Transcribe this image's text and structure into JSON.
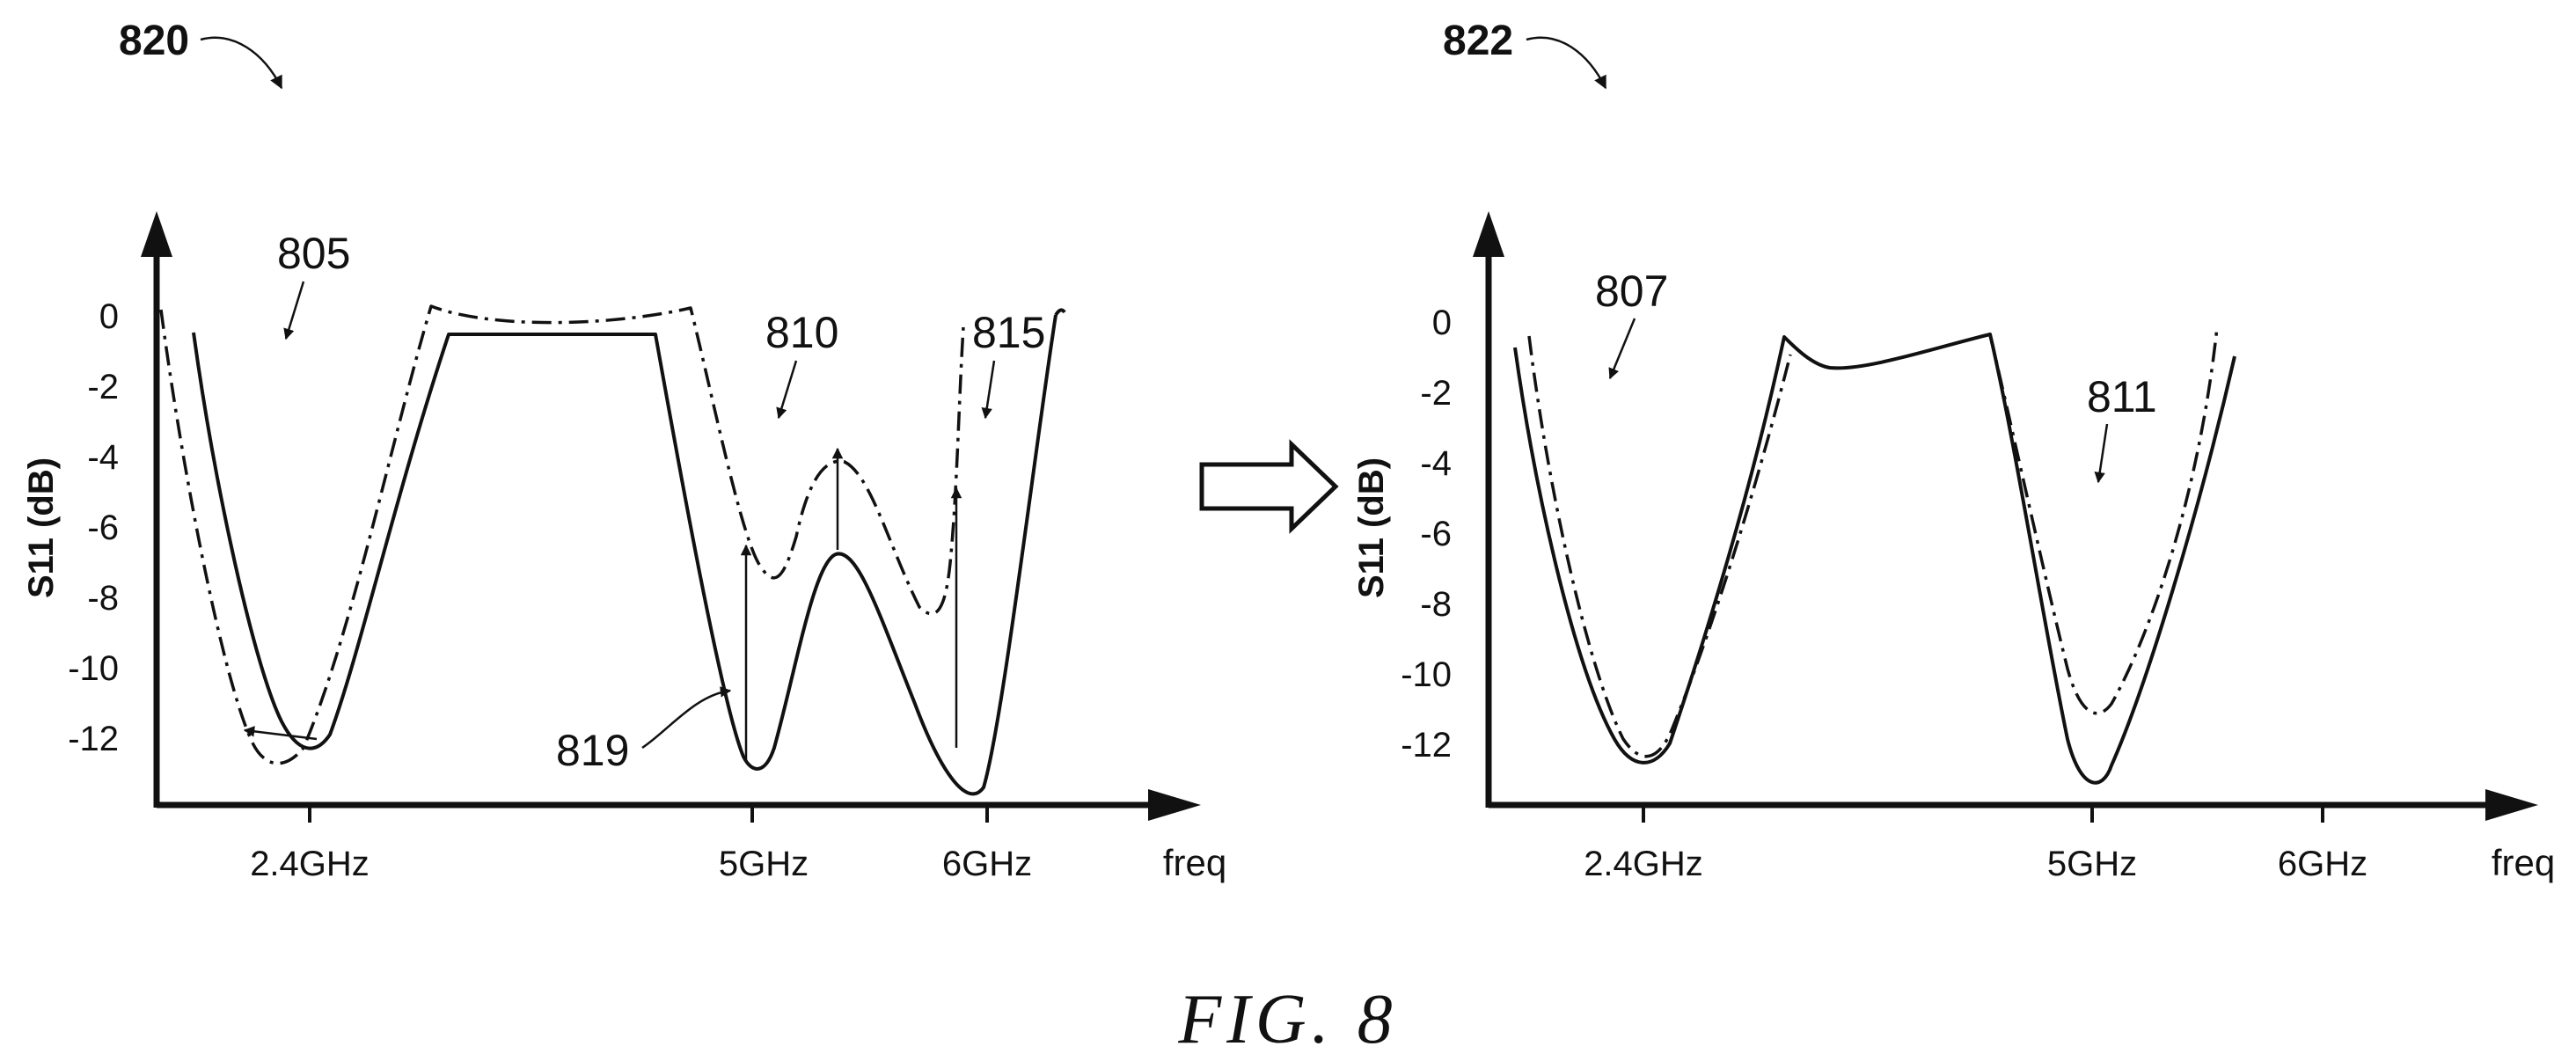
{
  "figure": {
    "caption": "FIG. 8",
    "transition_arrow_icon": "right-hollow-arrow-icon"
  },
  "panels": [
    {
      "id": "left",
      "ref": "820",
      "ylabel": "S11 (dB)",
      "y_ticks": [
        "0",
        "-2",
        "-4",
        "-6",
        "-8",
        "-10",
        "-12"
      ],
      "x_ticks": [
        "2.4GHz",
        "5GHz",
        "6GHz"
      ],
      "xlabel": "freq",
      "annotations": [
        "805",
        "810",
        "815",
        "819"
      ]
    },
    {
      "id": "right",
      "ref": "822",
      "ylabel": "S11 (dB)",
      "y_ticks": [
        "0",
        "-2",
        "-4",
        "-6",
        "-8",
        "-10",
        "-12"
      ],
      "x_ticks": [
        "2.4GHz",
        "5GHz",
        "6GHz"
      ],
      "xlabel": "freq",
      "annotations": [
        "807",
        "811"
      ]
    }
  ]
}
